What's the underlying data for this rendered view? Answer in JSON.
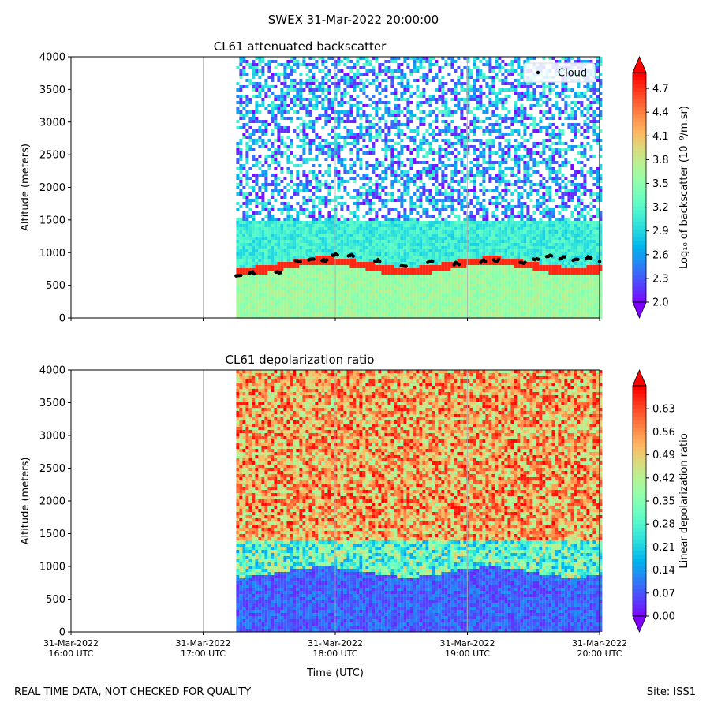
{
  "title": "SWEX 31-Mar-2022 20:00:00",
  "footer": {
    "left": "REAL TIME DATA, NOT CHECKED FOR QUALITY",
    "right": "Site: ISS1"
  },
  "colors": {
    "cloud_marker": "#000000",
    "colormap": "rainbow"
  },
  "chart_data": [
    {
      "type": "heatmap",
      "title": "CL61 attenuated backscatter",
      "ylabel": "Altitude (meters)",
      "xlabel": "",
      "x_ticks": [
        "31-Mar-2022\n16:00 UTC",
        "31-Mar-2022\n17:00 UTC",
        "31-Mar-2022\n18:00 UTC",
        "31-Mar-2022\n19:00 UTC",
        "31-Mar-2022\n20:00 UTC"
      ],
      "x_range_hours_utc": [
        16.0,
        20.0
      ],
      "data_start_hour_utc": 17.25,
      "ylim": [
        0,
        4000
      ],
      "y_ticks": [
        0,
        500,
        1000,
        1500,
        2000,
        2500,
        3000,
        3500,
        4000
      ],
      "colorbar": {
        "label": "Log₁₀ of backscatter (10⁻⁹/m.sr)",
        "range": [
          2.0,
          4.9
        ],
        "ticks": [
          "2.0",
          "2.3",
          "2.6",
          "2.9",
          "3.2",
          "3.5",
          "3.8",
          "4.1",
          "4.4",
          "4.7"
        ],
        "extend": "both"
      },
      "legend": {
        "entries": [
          "Cloud"
        ],
        "position": "top-right"
      },
      "cloud_base_series": {
        "name": "Cloud",
        "hours": [
          17.25,
          17.35,
          17.55,
          17.7,
          17.8,
          17.9,
          17.98,
          18.1,
          18.3,
          18.5,
          18.7,
          18.9,
          19.1,
          19.2,
          19.4,
          19.5,
          19.6,
          19.7,
          19.8,
          19.9,
          20.0
        ],
        "altitude_m": [
          660,
          690,
          700,
          880,
          900,
          880,
          960,
          950,
          880,
          800,
          850,
          830,
          870,
          880,
          840,
          890,
          940,
          920,
          900,
          920,
          880
        ]
      }
    },
    {
      "type": "heatmap",
      "title": "CL61 depolarization ratio",
      "ylabel": "Altitude (meters)",
      "xlabel": "Time (UTC)",
      "x_ticks": [
        "31-Mar-2022\n16:00 UTC",
        "31-Mar-2022\n17:00 UTC",
        "31-Mar-2022\n18:00 UTC",
        "31-Mar-2022\n19:00 UTC",
        "31-Mar-2022\n20:00 UTC"
      ],
      "x_range_hours_utc": [
        16.0,
        20.0
      ],
      "data_start_hour_utc": 17.25,
      "ylim": [
        0,
        4000
      ],
      "y_ticks": [
        0,
        500,
        1000,
        1500,
        2000,
        2500,
        3000,
        3500,
        4000
      ],
      "colorbar": {
        "label": "Linear depolarization ratio",
        "range": [
          0.0,
          0.7
        ],
        "ticks": [
          "0.00",
          "0.07",
          "0.14",
          "0.21",
          "0.28",
          "0.35",
          "0.42",
          "0.49",
          "0.56",
          "0.63"
        ],
        "extend": "both"
      }
    }
  ]
}
